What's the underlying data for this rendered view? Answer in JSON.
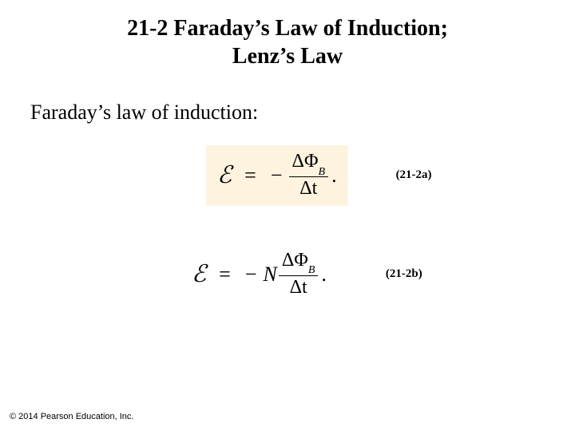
{
  "title": {
    "line1": "21-2 Faraday’s Law of Induction;",
    "line2": "Lenz’s Law",
    "fontsize": 28,
    "color": "#000000"
  },
  "lead_text": "Faraday’s law of induction:",
  "lead_fontsize": 26,
  "equations": {
    "a": {
      "emf_symbol": "ℰ",
      "equals": "=",
      "minus": "−",
      "numerator_delta": "ΔΦ",
      "numerator_sub": "B",
      "denominator": "Δt",
      "period": ".",
      "label": "(21-2a)",
      "highlight_bg": "#fef3df",
      "text_color": "#000000",
      "fontsize": 26
    },
    "b": {
      "emf_symbol": "ℰ",
      "equals": "=",
      "minus": "−",
      "coeff": "N",
      "numerator_delta": "ΔΦ",
      "numerator_sub": "B",
      "denominator": "Δt",
      "period": ".",
      "label": "(21-2b)",
      "highlight_bg": "#ffffff",
      "text_color": "#000000",
      "fontsize": 26
    }
  },
  "copyright": "© 2014 Pearson Education, Inc.",
  "page_bg": "#ffffff"
}
